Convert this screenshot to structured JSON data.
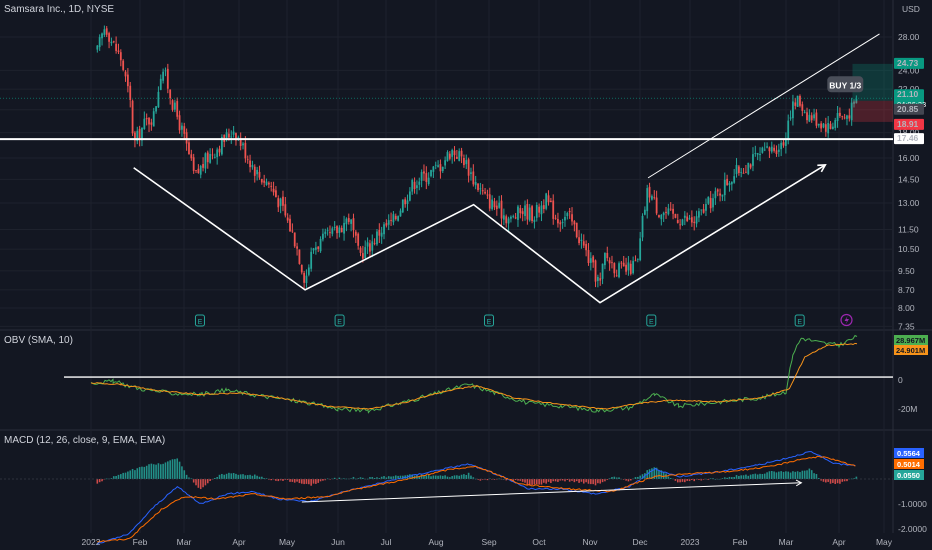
{
  "header": {
    "symbol": "Samsara Inc., 1D, NYSE",
    "currency": "USD"
  },
  "chart_data": [
    {
      "type": "candlestick",
      "title": "Samsara Inc., 1D, NYSE",
      "y_axis_unit": "USD",
      "y_scale": "log",
      "y_ticks": [
        "28.00",
        "24.00",
        "22.00",
        "20.00",
        "18.00",
        "16.00",
        "14.50",
        "13.00",
        "11.50",
        "10.50",
        "9.50",
        "8.70",
        "8.00",
        "7.35"
      ],
      "x_ticks": [
        "2022",
        "Feb",
        "Mar",
        "Apr",
        "May",
        "Jun",
        "Jul",
        "Aug",
        "Sep",
        "Oct",
        "Nov",
        "Dec",
        "2023",
        "Feb",
        "Mar",
        "Apr",
        "May"
      ],
      "ylim": [
        7.35,
        31.5
      ],
      "price_path": [
        [
          "2022-01-05",
          26.2
        ],
        [
          "2022-01-10",
          29.6
        ],
        [
          "2022-01-14",
          27.5
        ],
        [
          "2022-01-20",
          25.3
        ],
        [
          "2022-01-26",
          20.5
        ],
        [
          "2022-01-28",
          17.0
        ],
        [
          "2022-02-04",
          18.8
        ],
        [
          "2022-02-10",
          19.5
        ],
        [
          "2022-02-15",
          24.5
        ],
        [
          "2022-02-22",
          20.5
        ],
        [
          "2022-02-28",
          18.0
        ],
        [
          "2022-03-07",
          14.6
        ],
        [
          "2022-03-14",
          16.0
        ],
        [
          "2022-03-21",
          17.0
        ],
        [
          "2022-03-29",
          18.3
        ],
        [
          "2022-04-06",
          16.2
        ],
        [
          "2022-04-13",
          14.8
        ],
        [
          "2022-04-20",
          14.2
        ],
        [
          "2022-04-27",
          12.9
        ],
        [
          "2022-05-06",
          10.9
        ],
        [
          "2022-05-12",
          9.1
        ],
        [
          "2022-05-17",
          10.6
        ],
        [
          "2022-05-24",
          11.0
        ],
        [
          "2022-05-31",
          11.4
        ],
        [
          "2022-06-08",
          12.2
        ],
        [
          "2022-06-14",
          10.2
        ],
        [
          "2022-06-21",
          10.7
        ],
        [
          "2022-06-28",
          11.5
        ],
        [
          "2022-07-06",
          12.0
        ],
        [
          "2022-07-12",
          13.2
        ],
        [
          "2022-07-19",
          14.4
        ],
        [
          "2022-07-26",
          14.8
        ],
        [
          "2022-08-03",
          15.4
        ],
        [
          "2022-08-10",
          16.6
        ],
        [
          "2022-08-17",
          16.0
        ],
        [
          "2022-08-23",
          14.5
        ],
        [
          "2022-08-30",
          13.3
        ],
        [
          "2022-09-07",
          12.6
        ],
        [
          "2022-09-14",
          12.0
        ],
        [
          "2022-09-21",
          12.6
        ],
        [
          "2022-09-28",
          12.3
        ],
        [
          "2022-10-05",
          13.2
        ],
        [
          "2022-10-12",
          12.1
        ],
        [
          "2022-10-19",
          12.2
        ],
        [
          "2022-10-26",
          11.0
        ],
        [
          "2022-11-02",
          9.7
        ],
        [
          "2022-11-07",
          8.9
        ],
        [
          "2022-11-10",
          10.2
        ],
        [
          "2022-11-17",
          9.6
        ],
        [
          "2022-11-23",
          9.5
        ],
        [
          "2022-11-30",
          9.9
        ],
        [
          "2022-12-02",
          11.6
        ],
        [
          "2022-12-06",
          13.9
        ],
        [
          "2022-12-12",
          12.6
        ],
        [
          "2022-12-19",
          12.3
        ],
        [
          "2022-12-27",
          12.1
        ],
        [
          "2023-01-04",
          11.9
        ],
        [
          "2023-01-11",
          12.8
        ],
        [
          "2023-01-18",
          13.5
        ],
        [
          "2023-01-25",
          14.5
        ],
        [
          "2023-02-01",
          15.2
        ],
        [
          "2023-02-08",
          15.8
        ],
        [
          "2023-02-15",
          16.3
        ],
        [
          "2023-02-22",
          16.8
        ],
        [
          "2023-02-28",
          17.2
        ],
        [
          "2023-03-03",
          19.8
        ],
        [
          "2023-03-08",
          20.9
        ],
        [
          "2023-03-14",
          19.5
        ],
        [
          "2023-03-20",
          19.0
        ],
        [
          "2023-03-27",
          18.4
        ],
        [
          "2023-03-31",
          19.7
        ],
        [
          "2023-04-04",
          19.2
        ],
        [
          "2023-04-11",
          20.3
        ],
        [
          "2023-04-13",
          21.1
        ]
      ],
      "last_price": "21.10",
      "countdown": "04:06:33",
      "price_labels": [
        {
          "value": "24.73",
          "color": "#089981"
        },
        {
          "value": "21.10",
          "color": "#089981"
        },
        {
          "value": "20.85",
          "color": "#434651"
        },
        {
          "value": "18.91",
          "color": "#f23645"
        },
        {
          "value": "17.46",
          "color": "#ffffff"
        }
      ],
      "horizontal_line": 17.46,
      "annotation": "BUY 1/3",
      "position_tool": {
        "entry": 20.85,
        "target": 24.73,
        "stop": 18.91
      },
      "earnings_markers": [
        "2022-03-10",
        "2022-06-02",
        "2022-09-01",
        "2022-12-08",
        "2023-03-09"
      ],
      "earnings_icon": "E",
      "dividend_icon": "lightning-icon",
      "drawings": [
        {
          "kind": "polyline",
          "points": [
            [
              "2022-01-28",
              15.3
            ],
            [
              "2022-05-12",
              8.7
            ],
            [
              "2022-08-23",
              12.9
            ],
            [
              "2022-11-07",
              8.2
            ],
            [
              "2023-03-24",
              15.5
            ]
          ]
        },
        {
          "kind": "trend_channel",
          "lower": [
            [
              "2022-12-06",
              14.6
            ],
            [
              "2023-03-08",
              21.5
            ]
          ],
          "upper": [
            "2023-04-28",
            28.4
          ]
        }
      ]
    },
    {
      "type": "line",
      "title": "OBV (SMA, 10)",
      "y_ticks": [
        "0",
        "-20M"
      ],
      "series": [
        {
          "name": "OBV",
          "color": "#4caf50",
          "last_value": "28.967M",
          "points": [
            [
              "2022-01-01",
              -2
            ],
            [
              "2022-01-15",
              -1
            ],
            [
              "2022-02-01",
              -6
            ],
            [
              "2022-02-20",
              -9
            ],
            [
              "2022-03-10",
              -10
            ],
            [
              "2022-03-25",
              -7
            ],
            [
              "2022-04-15",
              -11
            ],
            [
              "2022-05-10",
              -15
            ],
            [
              "2022-06-01",
              -20
            ],
            [
              "2022-06-20",
              -21
            ],
            [
              "2022-07-10",
              -16
            ],
            [
              "2022-07-30",
              -10
            ],
            [
              "2022-08-20",
              -3
            ],
            [
              "2022-09-05",
              -9
            ],
            [
              "2022-09-25",
              -16
            ],
            [
              "2022-10-15",
              -18
            ],
            [
              "2022-11-05",
              -21
            ],
            [
              "2022-11-25",
              -19
            ],
            [
              "2022-12-10",
              -10
            ],
            [
              "2022-12-25",
              -18
            ],
            [
              "2023-01-20",
              -15
            ],
            [
              "2023-02-15",
              -12
            ],
            [
              "2023-03-01",
              -8
            ],
            [
              "2023-03-05",
              18
            ],
            [
              "2023-03-10",
              29
            ],
            [
              "2023-03-20",
              26
            ],
            [
              "2023-04-01",
              24
            ],
            [
              "2023-04-13",
              30
            ]
          ]
        },
        {
          "name": "SMA 10",
          "color": "#f7931a",
          "last_value": "24.901M",
          "points": [
            [
              "2022-01-01",
              -2
            ],
            [
              "2022-01-20",
              -3
            ],
            [
              "2022-02-10",
              -7
            ],
            [
              "2022-03-10",
              -10
            ],
            [
              "2022-04-01",
              -9
            ],
            [
              "2022-04-25",
              -12
            ],
            [
              "2022-05-25",
              -18
            ],
            [
              "2022-06-20",
              -20
            ],
            [
              "2022-07-15",
              -15
            ],
            [
              "2022-08-05",
              -8
            ],
            [
              "2022-08-25",
              -4
            ],
            [
              "2022-09-15",
              -12
            ],
            [
              "2022-10-15",
              -17
            ],
            [
              "2022-11-10",
              -20
            ],
            [
              "2022-12-01",
              -16
            ],
            [
              "2022-12-20",
              -14
            ],
            [
              "2023-01-20",
              -15
            ],
            [
              "2023-02-15",
              -12
            ],
            [
              "2023-03-03",
              -6
            ],
            [
              "2023-03-12",
              16
            ],
            [
              "2023-03-25",
              24
            ],
            [
              "2023-04-13",
              25
            ]
          ]
        }
      ],
      "horizontal_line": 2
    },
    {
      "type": "bar",
      "title": "MACD (12, 26, close, 9, EMA, EMA)",
      "y_ticks": [
        "-1.0000",
        "-2.0000"
      ],
      "series": [
        {
          "name": "MACD",
          "color": "#2962ff",
          "last_value": "0.5564",
          "points": [
            [
              "2022-01-05",
              -2.6
            ],
            [
              "2022-01-25",
              -2.2
            ],
            [
              "2022-02-10",
              -1.1
            ],
            [
              "2022-02-25",
              -0.3
            ],
            [
              "2022-03-10",
              -1.0
            ],
            [
              "2022-03-25",
              -0.6
            ],
            [
              "2022-04-10",
              -0.5
            ],
            [
              "2022-04-25",
              -0.8
            ],
            [
              "2022-05-15",
              -0.9
            ],
            [
              "2022-06-05",
              -0.5
            ],
            [
              "2022-06-25",
              -0.2
            ],
            [
              "2022-07-15",
              0.1
            ],
            [
              "2022-08-05",
              0.4
            ],
            [
              "2022-08-20",
              0.6
            ],
            [
              "2022-09-05",
              0.2
            ],
            [
              "2022-09-25",
              -0.4
            ],
            [
              "2022-10-15",
              -0.4
            ],
            [
              "2022-11-05",
              -0.6
            ],
            [
              "2022-11-25",
              -0.3
            ],
            [
              "2022-12-10",
              0.4
            ],
            [
              "2022-12-25",
              0.1
            ],
            [
              "2023-01-20",
              0.3
            ],
            [
              "2023-02-15",
              0.6
            ],
            [
              "2023-03-05",
              0.9
            ],
            [
              "2023-03-15",
              1.1
            ],
            [
              "2023-03-30",
              0.6
            ],
            [
              "2023-04-13",
              0.56
            ]
          ]
        },
        {
          "name": "Signal",
          "color": "#ff6d00",
          "last_value": "0.5014",
          "points": [
            [
              "2022-01-05",
              -2.5
            ],
            [
              "2022-01-25",
              -2.4
            ],
            [
              "2022-02-15",
              -1.2
            ],
            [
              "2022-03-01",
              -0.7
            ],
            [
              "2022-03-20",
              -0.8
            ],
            [
              "2022-04-10",
              -0.6
            ],
            [
              "2022-05-01",
              -0.8
            ],
            [
              "2022-05-25",
              -0.7
            ],
            [
              "2022-06-20",
              -0.3
            ],
            [
              "2022-07-15",
              0.0
            ],
            [
              "2022-08-10",
              0.4
            ],
            [
              "2022-08-25",
              0.5
            ],
            [
              "2022-09-20",
              -0.2
            ],
            [
              "2022-10-20",
              -0.4
            ],
            [
              "2022-11-15",
              -0.5
            ],
            [
              "2022-12-10",
              0.1
            ],
            [
              "2022-12-30",
              0.2
            ],
            [
              "2023-01-25",
              0.3
            ],
            [
              "2023-02-20",
              0.5
            ],
            [
              "2023-03-10",
              0.8
            ],
            [
              "2023-03-22",
              0.9
            ],
            [
              "2023-04-13",
              0.5
            ]
          ]
        }
      ],
      "histogram_last": "0.0550",
      "drawings": [
        {
          "kind": "trendline",
          "points": [
            [
              "2022-05-10",
              -0.92
            ],
            [
              "2023-03-10",
              -0.15
            ]
          ]
        }
      ]
    }
  ]
}
